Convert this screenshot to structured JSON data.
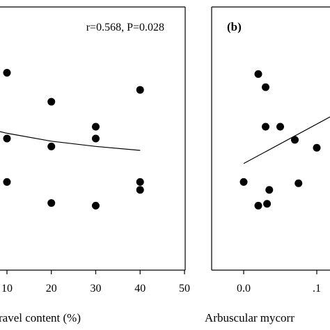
{
  "chart_data": [
    {
      "type": "scatter",
      "annotation": "r=0.568, P=0.028",
      "xlabel": "ravel content (%)",
      "xlim": [
        0,
        50
      ],
      "ylim": [
        0,
        10
      ],
      "xticks": [
        10,
        20,
        30,
        40,
        50
      ],
      "xtick_labels": [
        "10",
        "20",
        "30",
        "40",
        "50"
      ],
      "points": [
        {
          "x": 10,
          "y": 7.5
        },
        {
          "x": 10,
          "y": 5.0
        },
        {
          "x": 10,
          "y": 3.35
        },
        {
          "x": 20,
          "y": 6.4
        },
        {
          "x": 20,
          "y": 4.7
        },
        {
          "x": 20,
          "y": 2.55
        },
        {
          "x": 30,
          "y": 5.45
        },
        {
          "x": 30,
          "y": 5.0
        },
        {
          "x": 30,
          "y": 2.45
        },
        {
          "x": 40,
          "y": 6.85
        },
        {
          "x": 40,
          "y": 3.35
        },
        {
          "x": 40,
          "y": 3.05
        }
      ],
      "fit_line": [
        {
          "x": 0,
          "y": 5.6
        },
        {
          "x": 10,
          "y": 5.2
        },
        {
          "x": 20,
          "y": 4.9
        },
        {
          "x": 30,
          "y": 4.7
        },
        {
          "x": 40,
          "y": 4.55
        }
      ]
    },
    {
      "type": "scatter",
      "panel_label": "(b)",
      "xlabel": "Arbuscular mycorr",
      "xlim": [
        -0.05,
        0.2
      ],
      "ylim": [
        0,
        10
      ],
      "xticks": [
        0.0,
        0.1
      ],
      "xtick_labels": [
        "0.0",
        ".1"
      ],
      "points": [
        {
          "x": 0.0,
          "y": 3.35
        },
        {
          "x": 0.02,
          "y": 7.45
        },
        {
          "x": 0.03,
          "y": 6.95
        },
        {
          "x": 0.03,
          "y": 5.45
        },
        {
          "x": 0.05,
          "y": 5.45
        },
        {
          "x": 0.07,
          "y": 4.95
        },
        {
          "x": 0.1,
          "y": 4.65
        },
        {
          "x": 0.035,
          "y": 3.05
        },
        {
          "x": 0.075,
          "y": 3.3
        },
        {
          "x": 0.02,
          "y": 2.45
        },
        {
          "x": 0.032,
          "y": 2.52
        }
      ],
      "fit_line": [
        {
          "x": 0.0,
          "y": 4.05
        },
        {
          "x": 0.12,
          "y": 5.85
        }
      ]
    }
  ]
}
